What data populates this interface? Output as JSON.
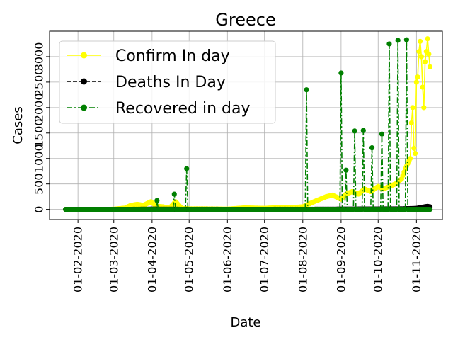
{
  "chart_data": {
    "type": "line",
    "title": "Greece",
    "xlabel": "Date",
    "ylabel": "Cases",
    "x_ticks": [
      "01-02-2020",
      "01-03-2020",
      "01-04-2020",
      "01-05-2020",
      "01-06-2020",
      "01-07-2020",
      "01-08-2020",
      "01-09-2020",
      "01-10-2020",
      "01-11-2020"
    ],
    "y_ticks": [
      "0",
      "500",
      "1000",
      "1500",
      "2000",
      "2500",
      "3000"
    ],
    "xlim": [
      "2020-01-09",
      "2020-11-22"
    ],
    "ylim": [
      -200,
      3500
    ],
    "grid": true,
    "legend_position": "top-left",
    "series": [
      {
        "name": "Confirm In day",
        "color": "#ffff00",
        "line_style": "solid",
        "marker": "circle",
        "points": [
          [
            "2020-01-22",
            0
          ],
          [
            "2020-02-26",
            1
          ],
          [
            "2020-03-01",
            4
          ],
          [
            "2020-03-10",
            25
          ],
          [
            "2020-03-15",
            80
          ],
          [
            "2020-03-20",
            100
          ],
          [
            "2020-03-25",
            80
          ],
          [
            "2020-03-31",
            150
          ],
          [
            "2020-04-05",
            60
          ],
          [
            "2020-04-10",
            50
          ],
          [
            "2020-04-15",
            20
          ],
          [
            "2020-04-20",
            150
          ],
          [
            "2020-04-25",
            20
          ],
          [
            "2020-05-01",
            10
          ],
          [
            "2020-05-15",
            10
          ],
          [
            "2020-06-01",
            5
          ],
          [
            "2020-06-15",
            30
          ],
          [
            "2020-07-01",
            20
          ],
          [
            "2020-07-15",
            40
          ],
          [
            "2020-07-25",
            40
          ],
          [
            "2020-08-01",
            50
          ],
          [
            "2020-08-10",
            150
          ],
          [
            "2020-08-15",
            200
          ],
          [
            "2020-08-20",
            250
          ],
          [
            "2020-08-25",
            280
          ],
          [
            "2020-09-01",
            200
          ],
          [
            "2020-09-05",
            300
          ],
          [
            "2020-09-10",
            350
          ],
          [
            "2020-09-15",
            300
          ],
          [
            "2020-09-20",
            400
          ],
          [
            "2020-09-25",
            350
          ],
          [
            "2020-10-01",
            450
          ],
          [
            "2020-10-05",
            400
          ],
          [
            "2020-10-10",
            450
          ],
          [
            "2020-10-15",
            500
          ],
          [
            "2020-10-20",
            600
          ],
          [
            "2020-10-23",
            800
          ],
          [
            "2020-10-25",
            900
          ],
          [
            "2020-10-27",
            1000
          ],
          [
            "2020-10-28",
            1700
          ],
          [
            "2020-10-29",
            2000
          ],
          [
            "2020-10-30",
            1200
          ],
          [
            "2020-10-31",
            1100
          ],
          [
            "2020-11-01",
            2500
          ],
          [
            "2020-11-02",
            2600
          ],
          [
            "2020-11-03",
            3100
          ],
          [
            "2020-11-04",
            3300
          ],
          [
            "2020-11-05",
            3000
          ],
          [
            "2020-11-06",
            2400
          ],
          [
            "2020-11-07",
            2000
          ],
          [
            "2020-11-08",
            2900
          ],
          [
            "2020-11-09",
            3100
          ],
          [
            "2020-11-10",
            3350
          ],
          [
            "2020-11-11",
            3050
          ],
          [
            "2020-11-12",
            2800
          ]
        ]
      },
      {
        "name": "Deaths In Day",
        "color": "#000000",
        "line_style": "dashed",
        "marker": "circle",
        "points": [
          [
            "2020-01-22",
            0
          ],
          [
            "2020-03-15",
            1
          ],
          [
            "2020-04-01",
            5
          ],
          [
            "2020-05-01",
            2
          ],
          [
            "2020-06-01",
            1
          ],
          [
            "2020-07-01",
            1
          ],
          [
            "2020-08-01",
            2
          ],
          [
            "2020-09-01",
            5
          ],
          [
            "2020-10-01",
            8
          ],
          [
            "2020-10-20",
            10
          ],
          [
            "2020-11-01",
            20
          ],
          [
            "2020-11-05",
            40
          ],
          [
            "2020-11-10",
            60
          ],
          [
            "2020-11-12",
            50
          ]
        ]
      },
      {
        "name": "Recovered in day",
        "color": "#008000",
        "line_style": "dashdot",
        "marker": "circle",
        "points": [
          [
            "2020-01-22",
            0
          ],
          [
            "2020-03-31",
            0
          ],
          [
            "2020-04-04",
            0
          ],
          [
            "2020-04-05",
            175
          ],
          [
            "2020-04-06",
            0
          ],
          [
            "2020-04-18",
            0
          ],
          [
            "2020-04-19",
            300
          ],
          [
            "2020-04-20",
            0
          ],
          [
            "2020-04-28",
            0
          ],
          [
            "2020-04-29",
            800
          ],
          [
            "2020-04-30",
            0
          ],
          [
            "2020-08-03",
            0
          ],
          [
            "2020-08-04",
            2350
          ],
          [
            "2020-08-05",
            0
          ],
          [
            "2020-08-31",
            0
          ],
          [
            "2020-09-01",
            2680
          ],
          [
            "2020-09-02",
            0
          ],
          [
            "2020-09-04",
            0
          ],
          [
            "2020-09-05",
            770
          ],
          [
            "2020-09-06",
            0
          ],
          [
            "2020-09-11",
            0
          ],
          [
            "2020-09-12",
            1540
          ],
          [
            "2020-09-13",
            0
          ],
          [
            "2020-09-18",
            0
          ],
          [
            "2020-09-19",
            1550
          ],
          [
            "2020-09-20",
            0
          ],
          [
            "2020-09-25",
            0
          ],
          [
            "2020-09-26",
            1210
          ],
          [
            "2020-09-27",
            0
          ],
          [
            "2020-10-03",
            0
          ],
          [
            "2020-10-04",
            1480
          ],
          [
            "2020-10-05",
            0
          ],
          [
            "2020-10-09",
            0
          ],
          [
            "2020-10-10",
            3250
          ],
          [
            "2020-10-11",
            0
          ],
          [
            "2020-10-16",
            0
          ],
          [
            "2020-10-17",
            3320
          ],
          [
            "2020-10-18",
            0
          ],
          [
            "2020-10-23",
            0
          ],
          [
            "2020-10-24",
            3330
          ],
          [
            "2020-10-25",
            0
          ],
          [
            "2020-11-12",
            0
          ]
        ]
      }
    ]
  }
}
